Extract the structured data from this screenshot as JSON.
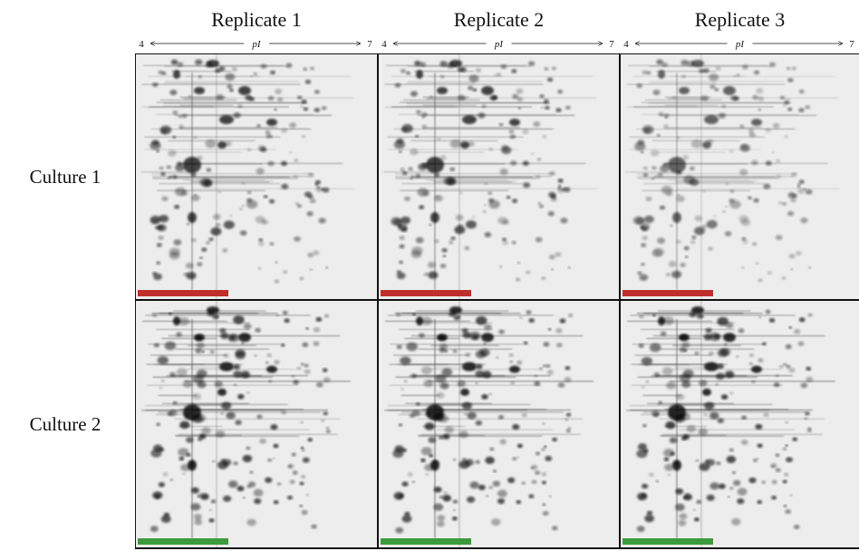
{
  "columns": [
    {
      "title": "Replicate 1",
      "axis": {
        "start": "4",
        "label": "pI",
        "end": "7"
      }
    },
    {
      "title": "Replicate 2",
      "axis": {
        "start": "4",
        "label": "pI",
        "end": "7"
      }
    },
    {
      "title": "Replicate 3",
      "axis": {
        "start": "4",
        "label": "pI",
        "end": "7"
      }
    }
  ],
  "rows": [
    {
      "label": "Culture 1"
    },
    {
      "label": "Culture 2"
    }
  ]
}
